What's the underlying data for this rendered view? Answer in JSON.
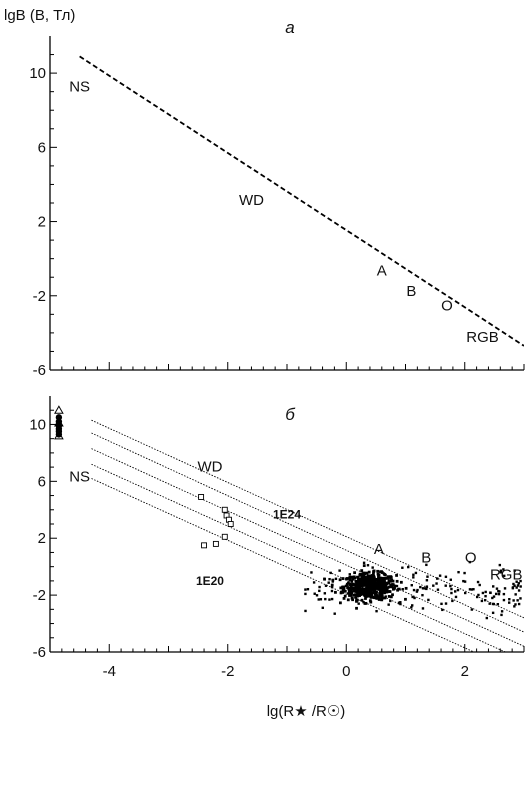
{
  "chart_data": [
    {
      "panel_label": "а",
      "type": "line",
      "ylabel": "lgB (B, Тл)",
      "xlim": [
        -5,
        3
      ],
      "ylim": [
        -6,
        12
      ],
      "y_ticks": [
        "10",
        "6",
        "2",
        "-2",
        "-6"
      ],
      "series": [
        {
          "style": "dashed",
          "x": [
            -4.5,
            3.0
          ],
          "y": [
            10.9,
            -4.7
          ]
        }
      ],
      "annotations": [
        {
          "text": "NS",
          "x": -4.5,
          "y": 9.0
        },
        {
          "text": "WD",
          "x": -1.6,
          "y": 2.9
        },
        {
          "text": "A",
          "x": 0.6,
          "y": -0.9
        },
        {
          "text": "B",
          "x": 1.1,
          "y": -2.0
        },
        {
          "text": "O",
          "x": 1.7,
          "y": -2.8
        },
        {
          "text": "RGB",
          "x": 2.3,
          "y": -4.5
        }
      ]
    },
    {
      "panel_label": "б",
      "type": "scatter",
      "xlabel": "lg(R★ /R☉)",
      "xlim": [
        -5,
        3
      ],
      "ylim": [
        -6,
        12
      ],
      "x_ticks": [
        "-4",
        "-2",
        "0",
        "2"
      ],
      "y_ticks": [
        "10",
        "6",
        "2",
        "-2",
        "-6"
      ],
      "series": [
        {
          "style": "dotted-line",
          "x": [
            -4.3,
            3.0
          ],
          "y": [
            10.3,
            -3.6
          ]
        },
        {
          "style": "dotted-line",
          "x": [
            -4.3,
            3.0
          ],
          "y": [
            9.4,
            -4.6
          ]
        },
        {
          "style": "dotted-line",
          "x": [
            -4.3,
            3.0
          ],
          "y": [
            8.3,
            -5.6
          ]
        },
        {
          "style": "dotted-line",
          "x": [
            -4.3,
            3.0
          ],
          "y": [
            7.2,
            -6.6
          ]
        },
        {
          "style": "dotted-line",
          "x": [
            -4.3,
            3.0
          ],
          "y": [
            6.2,
            -7.6
          ]
        },
        {
          "style": "triangle-markers",
          "x": [
            -4.85,
            -4.85,
            -4.85
          ],
          "y": [
            11.0,
            10.1,
            9.2
          ]
        },
        {
          "style": "dot-markers-ns",
          "x": [
            -4.85,
            -4.85,
            -4.85,
            -4.85,
            -4.85,
            -4.85
          ],
          "y": [
            10.5,
            10.2,
            9.9,
            9.7,
            9.5,
            9.3
          ]
        },
        {
          "style": "open-squares",
          "x": [
            -2.45,
            -2.05,
            -2.02,
            -1.98,
            -1.95,
            -2.4,
            -2.2,
            -2.05
          ],
          "y": [
            4.9,
            4.0,
            3.6,
            3.3,
            3.0,
            1.5,
            1.6,
            2.1
          ]
        }
      ],
      "annotations": [
        {
          "text": "WD",
          "x": -2.3,
          "y": 6.7
        },
        {
          "text": "NS",
          "x": -4.5,
          "y": 6.0
        },
        {
          "text": "1E24",
          "x": -1.0,
          "y": 3.4
        },
        {
          "text": "1E20",
          "x": -2.3,
          "y": -1.3
        },
        {
          "text": "A",
          "x": 0.55,
          "y": 0.9
        },
        {
          "text": "B",
          "x": 1.35,
          "y": 0.3
        },
        {
          "text": "O",
          "x": 2.1,
          "y": 0.3
        },
        {
          "text": "RGB",
          "x": 2.7,
          "y": -0.9
        }
      ],
      "main_cluster": {
        "x_range": [
          -0.7,
          3.0
        ],
        "y_range": [
          -4.0,
          0.4
        ],
        "center": [
          0.4,
          -1.4
        ]
      }
    }
  ]
}
